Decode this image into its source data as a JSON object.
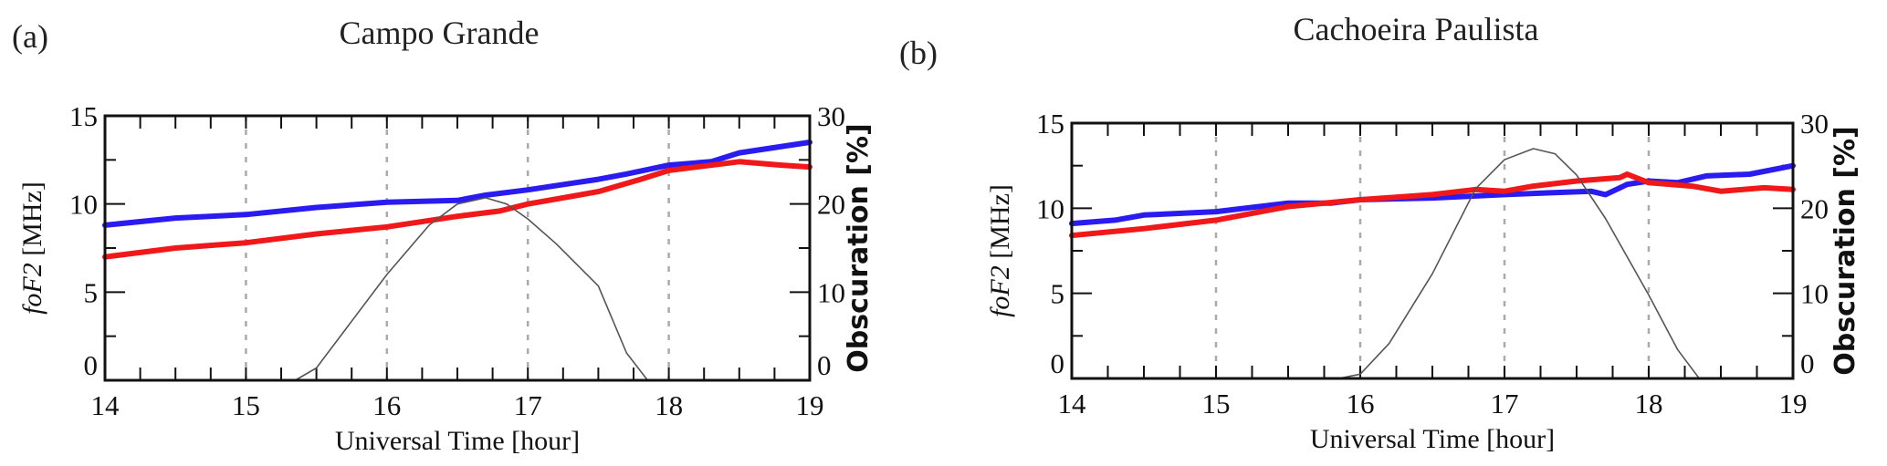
{
  "colors": {
    "blue": "#2a1cf0",
    "red": "#f01818",
    "obscuration": "#555555",
    "grid": "#aaaaaa"
  },
  "chart_data": [
    {
      "type": "line",
      "panel": "(a)",
      "title": "Campo Grande",
      "xlabel": "Universal Time [hour]",
      "ylabel_main": "foF2",
      "ylabel_unit": " [MHz]",
      "ylabel_right": "Obscuration [%]",
      "xlim": [
        14,
        19
      ],
      "ylim": [
        0,
        15
      ],
      "ylim_right": [
        0,
        30
      ],
      "xticks": [
        "14",
        "15",
        "16",
        "17",
        "18",
        "19"
      ],
      "yticks": [
        "0",
        "5",
        "10",
        "15"
      ],
      "yticks_right": [
        "0",
        "10",
        "20",
        "30"
      ],
      "grid": "vertical dotted at 15, 16, 17, 18",
      "series": [
        {
          "name": "blue",
          "axis": "left",
          "x": [
            14,
            14.5,
            15,
            15.5,
            16,
            16.5,
            16.7,
            17,
            17.5,
            17.7,
            18,
            18.3,
            18.5,
            19
          ],
          "y": [
            8.8,
            9.2,
            9.4,
            9.8,
            10.1,
            10.2,
            10.5,
            10.8,
            11.4,
            11.7,
            12.2,
            12.4,
            12.9,
            13.5
          ]
        },
        {
          "name": "red",
          "axis": "left",
          "x": [
            14,
            14.5,
            15,
            15.5,
            16,
            16.5,
            16.8,
            17,
            17.5,
            17.8,
            18,
            18.5,
            18.8,
            19
          ],
          "y": [
            7.0,
            7.5,
            7.8,
            8.3,
            8.7,
            9.3,
            9.6,
            10.0,
            10.7,
            11.4,
            11.9,
            12.4,
            12.2,
            12.1
          ]
        },
        {
          "name": "obscuration",
          "axis": "right",
          "x": [
            15.35,
            15.5,
            16,
            16.3,
            16.5,
            16.7,
            16.85,
            17,
            17.2,
            17.5,
            17.7,
            17.85
          ],
          "y": [
            0,
            1.4,
            12,
            17.6,
            20,
            20.7,
            20,
            18.3,
            15.5,
            10.7,
            3.1,
            0
          ]
        }
      ]
    },
    {
      "type": "line",
      "panel": "(b)",
      "title": "Cachoeira Paulista",
      "xlabel": "Universal Time [hour]",
      "ylabel_main": "foF2",
      "ylabel_unit": " [MHz]",
      "ylabel_right": "Obscuration [%]",
      "xlim": [
        14,
        19
      ],
      "ylim": [
        0,
        15
      ],
      "ylim_right": [
        0,
        30
      ],
      "xticks": [
        "14",
        "15",
        "16",
        "17",
        "18",
        "19"
      ],
      "yticks": [
        "0",
        "5",
        "10",
        "15"
      ],
      "yticks_right": [
        "0",
        "10",
        "20",
        "30"
      ],
      "grid": "vertical dotted at 15, 16, 17, 18",
      "series": [
        {
          "name": "blue",
          "axis": "left",
          "x": [
            14,
            14.3,
            14.5,
            15,
            15.5,
            15.8,
            16,
            16.5,
            17,
            17.3,
            17.6,
            17.7,
            17.85,
            18,
            18.2,
            18.4,
            18.7,
            19
          ],
          "y": [
            9.1,
            9.3,
            9.6,
            9.8,
            10.3,
            10.3,
            10.5,
            10.6,
            10.8,
            10.9,
            11.0,
            10.8,
            11.4,
            11.6,
            11.5,
            11.9,
            12.0,
            12.5
          ]
        },
        {
          "name": "red",
          "axis": "left",
          "x": [
            14,
            14.5,
            15,
            15.5,
            16,
            16.5,
            16.8,
            17,
            17.2,
            17.5,
            17.8,
            17.85,
            18,
            18.3,
            18.5,
            18.8,
            19
          ],
          "y": [
            8.4,
            8.8,
            9.3,
            10.1,
            10.5,
            10.8,
            11.1,
            11.0,
            11.3,
            11.6,
            11.8,
            12.0,
            11.5,
            11.3,
            11.0,
            11.2,
            11.1
          ]
        },
        {
          "name": "obscuration",
          "axis": "right",
          "x": [
            15.85,
            16,
            16.2,
            16.5,
            16.8,
            17,
            17.2,
            17.35,
            17.5,
            17.7,
            18,
            18.2,
            18.35
          ],
          "y": [
            0,
            0.5,
            4.1,
            12.3,
            22.3,
            25.7,
            27,
            26.4,
            23.9,
            18.8,
            9.8,
            3.4,
            0
          ]
        }
      ]
    }
  ]
}
